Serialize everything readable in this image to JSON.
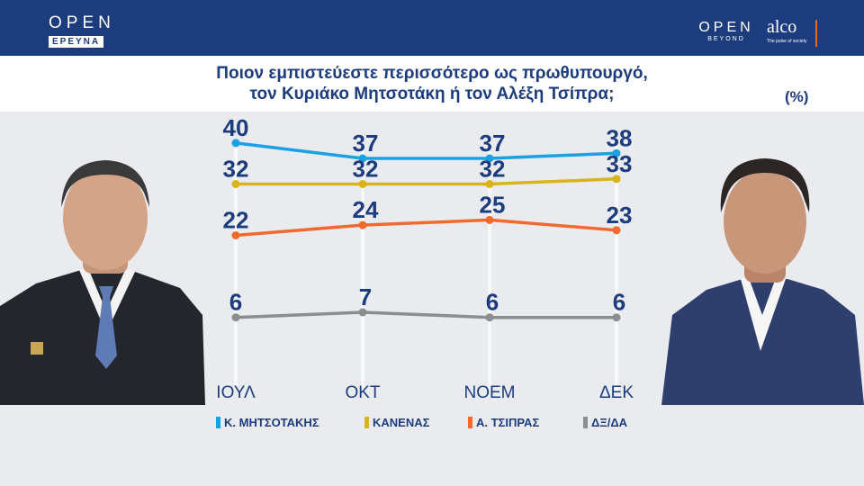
{
  "header": {
    "left_logo": {
      "word": "OPEN",
      "sub": "ΕΡΕΥΝΑ"
    },
    "right_logo_open": {
      "word": "OPEN",
      "sub": "BEYOND"
    },
    "right_logo_alco": {
      "word": "alco",
      "sub": "The pulse of society"
    }
  },
  "colors": {
    "header_bg": "#1d3c7d",
    "text": "#1d3c7d",
    "mitsotakis": "#1aa1e1",
    "kanenas": "#d8b41c",
    "tsipras": "#f06a30",
    "dxda": "#8a8e91"
  },
  "chart_data": {
    "type": "line",
    "title_line1": "Ποιον εμπιστεύεστε περισσότερο ως πρωθυπουργό,",
    "title_line2": "τον Κυριάκο Μητσοτάκη ή τον Αλέξη Τσίπρα;",
    "unit": "(%)",
    "categories": [
      "ΙΟΥΛ",
      "ΟΚΤ",
      "ΝΟΕΜ",
      "ΔΕΚ"
    ],
    "series": [
      {
        "name": "Κ. ΜΗΤΣΟΤΑΚΗΣ",
        "color": "#1aa1e1",
        "values": [
          40,
          37,
          37,
          38
        ]
      },
      {
        "name": "ΚΑΝΕΝΑΣ",
        "color": "#d8b41c",
        "values": [
          32,
          32,
          32,
          33
        ]
      },
      {
        "name": "Α. ΤΣΙΠΡΑΣ",
        "color": "#f06a30",
        "values": [
          22,
          24,
          25,
          23
        ]
      },
      {
        "name": "ΔΞ/ΔΑ",
        "color": "#8a8e91",
        "values": [
          6,
          7,
          6,
          6
        ]
      }
    ],
    "legend_position": "bottom",
    "grid": "vertical"
  }
}
